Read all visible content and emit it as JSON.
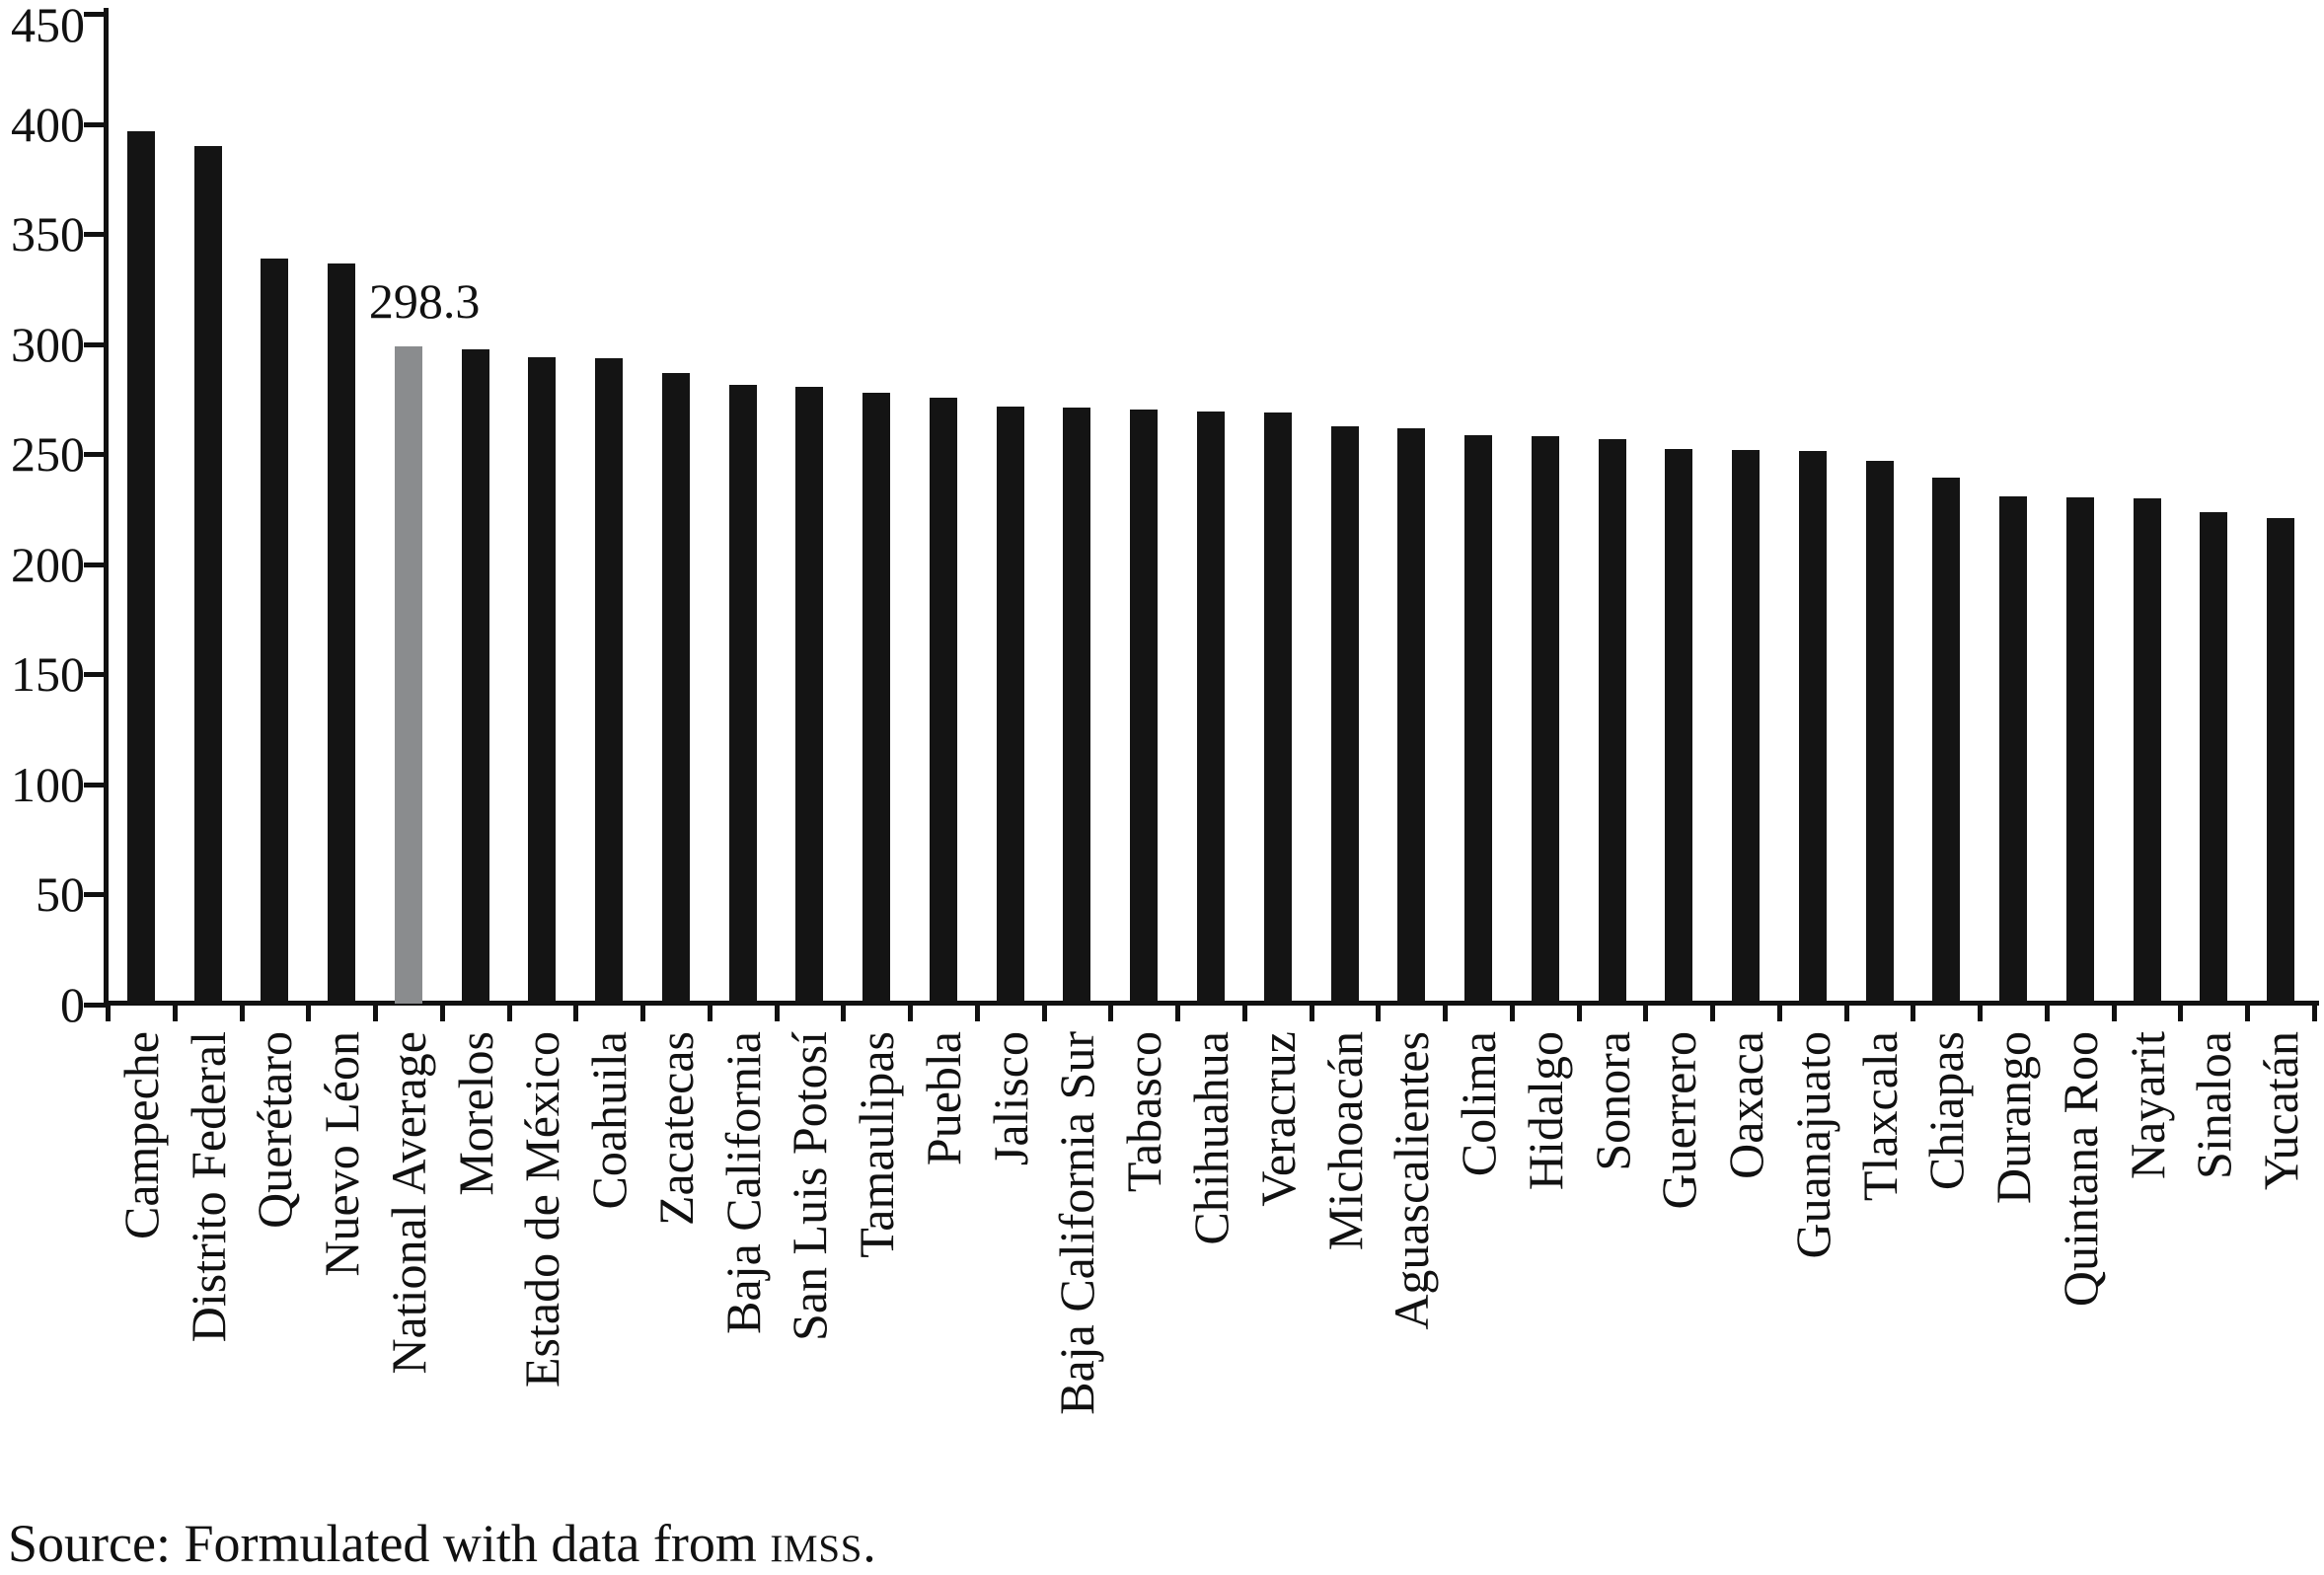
{
  "chart_data": {
    "type": "bar",
    "title": "",
    "xlabel": "",
    "ylabel": "",
    "grid": "off",
    "legend": "none",
    "ylim": [
      0,
      450
    ],
    "yticks": [
      0,
      50,
      100,
      150,
      200,
      250,
      300,
      350,
      400,
      450
    ],
    "bar_color": "#141414",
    "highlight_index": 4,
    "highlight_color": "#8a8c8e",
    "annotation": {
      "text": "298.3",
      "category": "National Average"
    },
    "categories": [
      "Campeche",
      "Distrito Federal",
      "Querétaro",
      "Nuevo Léon",
      "National Average",
      "Morelos",
      "Estado de México",
      "Coahuila",
      "Zacatecas",
      "Baja California",
      "San Luis Potosí",
      "Tamaulipas",
      "Puebla",
      "Jalisco",
      "Baja California Sur",
      "Tabasco",
      "Chihuahua",
      "Veracruz",
      "Michoacán",
      "Aguascalientes",
      "Colima",
      "Hidalgo",
      "Sonora",
      "Guerrero",
      "Oaxaca",
      "Guanajuato",
      "Tlaxcala",
      "Chiapas",
      "Durango",
      "Quintana Roo",
      "Nayarit",
      "Sinaloa",
      "Yucatán"
    ],
    "values": [
      396,
      389.5,
      338.5,
      336,
      298.3,
      297,
      293.5,
      293,
      286.5,
      281,
      280,
      277.5,
      275,
      271,
      270.5,
      270,
      269,
      268.5,
      262,
      261.5,
      258,
      257.5,
      256.5,
      252,
      251.5,
      251,
      246.5,
      239,
      230.5,
      230,
      229.5,
      223,
      220.5
    ]
  },
  "source_line": {
    "prefix": "Source: Formulated with data from ",
    "org": "IMSS",
    "suffix": "."
  }
}
